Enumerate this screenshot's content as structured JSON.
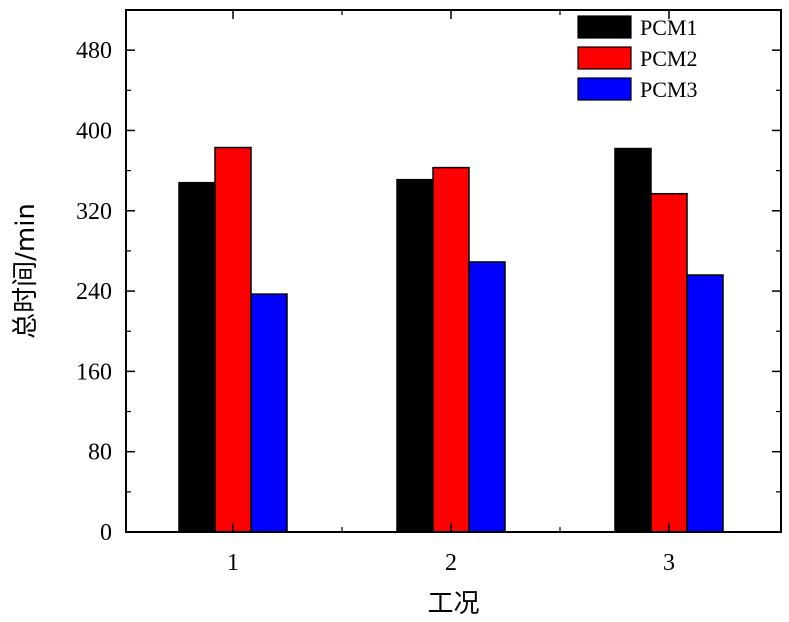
{
  "chart_data": {
    "type": "bar",
    "categories": [
      "1",
      "2",
      "3"
    ],
    "series": [
      {
        "name": "PCM1",
        "color": "#000000",
        "values": [
          348,
          351,
          382
        ]
      },
      {
        "name": "PCM2",
        "color": "#ff0000",
        "values": [
          383,
          363,
          337
        ]
      },
      {
        "name": "PCM3",
        "color": "#0000ff",
        "values": [
          237,
          269,
          256
        ]
      }
    ],
    "title": "",
    "xlabel": "工况",
    "ylabel": "总时间/min",
    "ylim": [
      0,
      520
    ],
    "yticks": [
      0,
      80,
      160,
      240,
      320,
      400,
      480
    ],
    "legend_position": "top-right",
    "grid": false
  }
}
